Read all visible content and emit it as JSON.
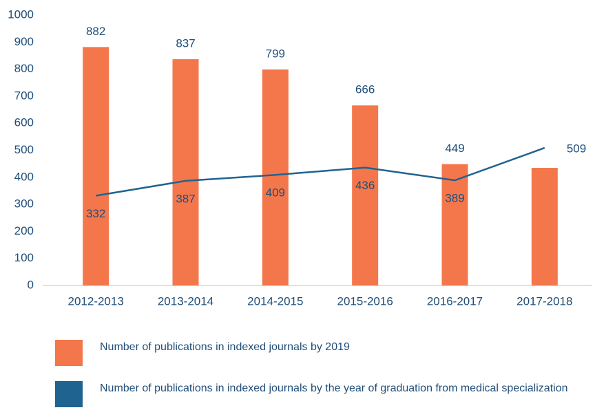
{
  "chart_data": {
    "type": "bar-line",
    "categories": [
      "2012-2013",
      "2013-2014",
      "2014-2015",
      "2015-2016",
      "2016-2017",
      "2017-2018"
    ],
    "series": [
      {
        "name": "Number of publications in indexed journals by 2019",
        "type": "bar",
        "color": "#F4774B",
        "values": [
          882,
          837,
          799,
          666,
          449,
          435
        ],
        "value_labels": [
          "882",
          "837",
          "799",
          "666",
          "449",
          null
        ]
      },
      {
        "name": "Number of publications in indexed journals by the year of graduation from medical specialization",
        "type": "line",
        "color": "#1F6391",
        "values": [
          332,
          387,
          409,
          436,
          389,
          509
        ]
      }
    ],
    "ylim": [
      0,
      1000
    ],
    "yticks": [
      0,
      100,
      200,
      300,
      400,
      500,
      600,
      700,
      800,
      900,
      1000
    ],
    "grid": false
  }
}
